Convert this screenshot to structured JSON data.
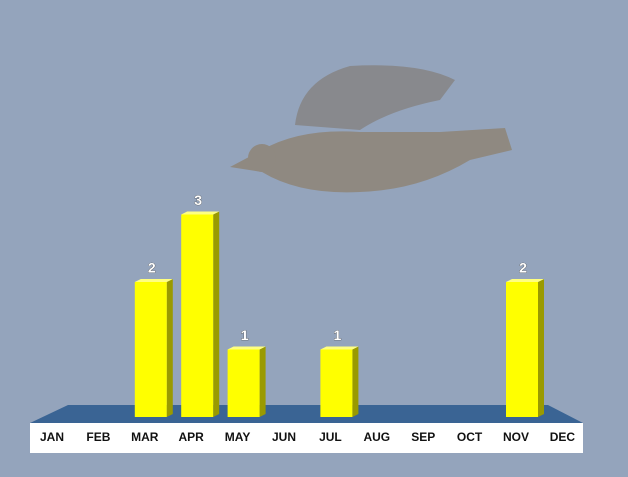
{
  "chart_data": {
    "type": "bar",
    "categories": [
      "JAN",
      "FEB",
      "MAR",
      "APR",
      "MAY",
      "JUN",
      "JUL",
      "AUG",
      "SEP",
      "OCT",
      "NOV",
      "DEC"
    ],
    "values": [
      null,
      null,
      2,
      3,
      1,
      null,
      1,
      null,
      null,
      null,
      2,
      null
    ],
    "color": "#ffff00"
  }
}
